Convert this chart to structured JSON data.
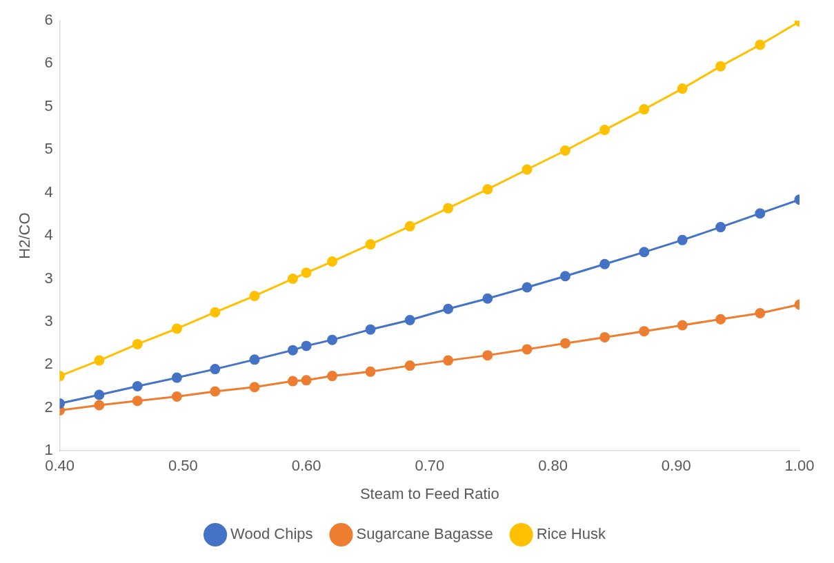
{
  "chart_data": {
    "type": "line",
    "xlabel": "Steam to Feed Ratio",
    "ylabel": "H2/CO",
    "x": [
      0.4,
      0.432,
      0.463,
      0.495,
      0.526,
      0.558,
      0.589,
      0.6,
      0.621,
      0.652,
      0.684,
      0.715,
      0.747,
      0.779,
      0.81,
      0.842,
      0.874,
      0.905,
      0.936,
      0.968,
      1.0
    ],
    "series": [
      {
        "name": "Wood Chips",
        "color": "#4472c4",
        "values": [
          1.55,
          1.65,
          1.75,
          1.85,
          1.95,
          2.06,
          2.17,
          2.22,
          2.29,
          2.41,
          2.52,
          2.65,
          2.77,
          2.9,
          3.03,
          3.17,
          3.31,
          3.45,
          3.6,
          3.76,
          3.92
        ]
      },
      {
        "name": "Sugarcane Bagasse",
        "color": "#ed7d31",
        "values": [
          1.47,
          1.53,
          1.58,
          1.63,
          1.69,
          1.74,
          1.81,
          1.82,
          1.87,
          1.92,
          1.99,
          2.05,
          2.11,
          2.18,
          2.25,
          2.32,
          2.39,
          2.46,
          2.53,
          2.6,
          2.7
        ]
      },
      {
        "name": "Rice Husk",
        "color": "#ffc000",
        "values": [
          1.87,
          2.05,
          2.24,
          2.42,
          2.61,
          2.8,
          3.0,
          3.07,
          3.2,
          3.4,
          3.61,
          3.82,
          4.04,
          4.27,
          4.49,
          4.73,
          4.97,
          5.21,
          5.47,
          5.72,
          5.99
        ]
      }
    ],
    "xlim": [
      0.4,
      1.0
    ],
    "xticks": [
      {
        "value": 0.4,
        "label": "0.40"
      },
      {
        "value": 0.5,
        "label": "0.50"
      },
      {
        "value": 0.6,
        "label": "0.60"
      },
      {
        "value": 0.7,
        "label": "0.70"
      },
      {
        "value": 0.8,
        "label": "0.80"
      },
      {
        "value": 0.9,
        "label": "0.90"
      },
      {
        "value": 1.0,
        "label": "1.00"
      }
    ],
    "ylim": [
      1,
      6
    ],
    "yticks": [
      1,
      {
        "value": 1.5,
        "label": "2"
      },
      2,
      {
        "value": 2.5,
        "label": "3"
      },
      3,
      {
        "value": 3.5,
        "label": "4"
      },
      4,
      {
        "value": 4.5,
        "label": "5"
      },
      5,
      {
        "value": 5.5,
        "label": "6"
      },
      6
    ],
    "grid": false,
    "legend": "bottom",
    "marker": "circle",
    "line_style": "solid"
  }
}
